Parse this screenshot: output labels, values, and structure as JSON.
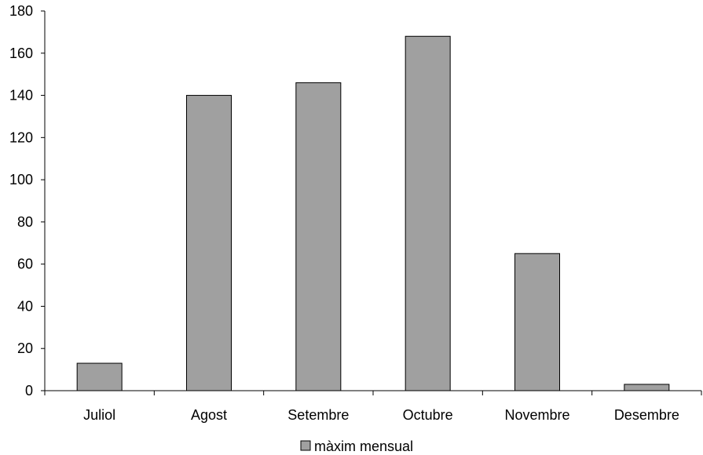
{
  "chart_data": {
    "type": "bar",
    "categories": [
      "Juliol",
      "Agost",
      "Setembre",
      "Octubre",
      "Novembre",
      "Desembre"
    ],
    "series": [
      {
        "name": "màxim mensual",
        "values": [
          13,
          140,
          146,
          168,
          65,
          3
        ]
      }
    ],
    "yticks": [
      "0",
      "20",
      "40",
      "60",
      "80",
      "100",
      "120",
      "140",
      "160",
      "180"
    ],
    "ylim": [
      0,
      180
    ],
    "grid": false,
    "legend": "bottom-center",
    "colors": {
      "bar": "#a0a0a0",
      "bar_stroke": "#000000",
      "axis": "#000000"
    }
  }
}
